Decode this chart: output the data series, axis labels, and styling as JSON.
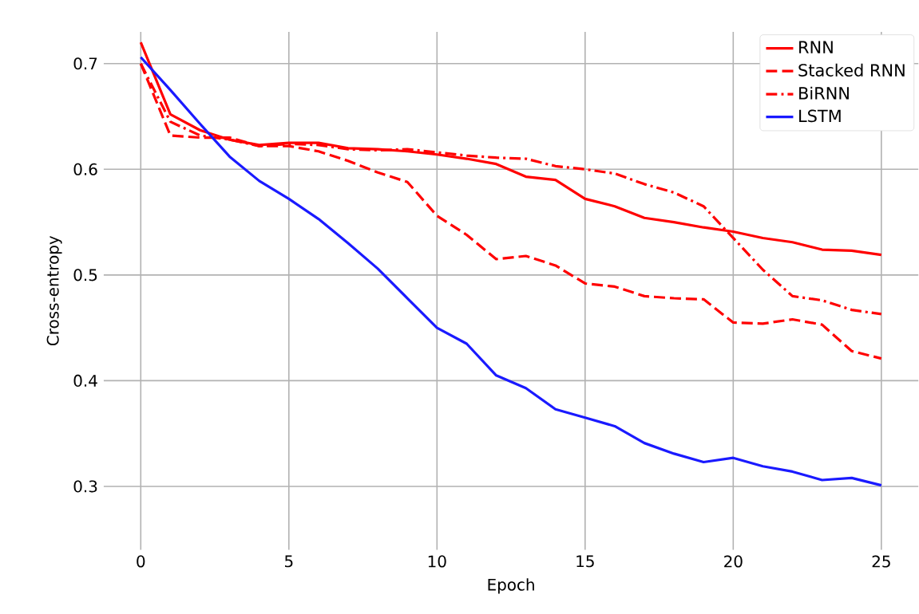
{
  "chart_data": {
    "type": "line",
    "xlabel": "Epoch",
    "ylabel": "Cross-entropy",
    "x": [
      0,
      1,
      2,
      3,
      4,
      5,
      6,
      7,
      8,
      9,
      10,
      11,
      12,
      13,
      14,
      15,
      16,
      17,
      18,
      19,
      20,
      21,
      22,
      23,
      24,
      25
    ],
    "series": [
      {
        "name": "RNN",
        "color": "#ff0000",
        "line_style": "solid",
        "values": [
          0.72,
          0.652,
          0.637,
          0.628,
          0.623,
          0.625,
          0.625,
          0.62,
          0.619,
          0.617,
          0.614,
          0.61,
          0.605,
          0.593,
          0.59,
          0.572,
          0.565,
          0.554,
          0.55,
          0.545,
          0.541,
          0.535,
          0.531,
          0.524,
          0.523,
          0.519
        ]
      },
      {
        "name": "Stacked RNN",
        "color": "#ff0000",
        "line_style": "dashed",
        "values": [
          0.7,
          0.632,
          0.63,
          0.63,
          0.622,
          0.622,
          0.617,
          0.608,
          0.597,
          0.588,
          0.556,
          0.538,
          0.515,
          0.518,
          0.509,
          0.492,
          0.489,
          0.48,
          0.478,
          0.477,
          0.455,
          0.454,
          0.458,
          0.453,
          0.428,
          0.421
        ]
      },
      {
        "name": "BiRNN",
        "color": "#ff0000",
        "line_style": "dashdot",
        "values": [
          0.7,
          0.645,
          0.632,
          0.628,
          0.622,
          0.624,
          0.623,
          0.619,
          0.618,
          0.619,
          0.616,
          0.613,
          0.611,
          0.61,
          0.603,
          0.6,
          0.596,
          0.586,
          0.578,
          0.565,
          0.535,
          0.505,
          0.48,
          0.476,
          0.467,
          0.463
        ]
      },
      {
        "name": "LSTM",
        "color": "#1a1aff",
        "line_style": "solid",
        "values": [
          0.706,
          0.675,
          0.643,
          0.612,
          0.589,
          0.572,
          0.553,
          0.53,
          0.506,
          0.478,
          0.45,
          0.435,
          0.405,
          0.393,
          0.373,
          0.365,
          0.357,
          0.341,
          0.331,
          0.323,
          0.327,
          0.319,
          0.314,
          0.306,
          0.308,
          0.301
        ]
      }
    ],
    "xlim": [
      -1.25,
      26.25
    ],
    "ylim": [
      0.24,
      0.73
    ],
    "xticks": [
      0,
      5,
      10,
      15,
      20,
      25
    ],
    "yticks": [
      0.3,
      0.4,
      0.5,
      0.6,
      0.7
    ],
    "grid": true,
    "legend": "top right"
  }
}
